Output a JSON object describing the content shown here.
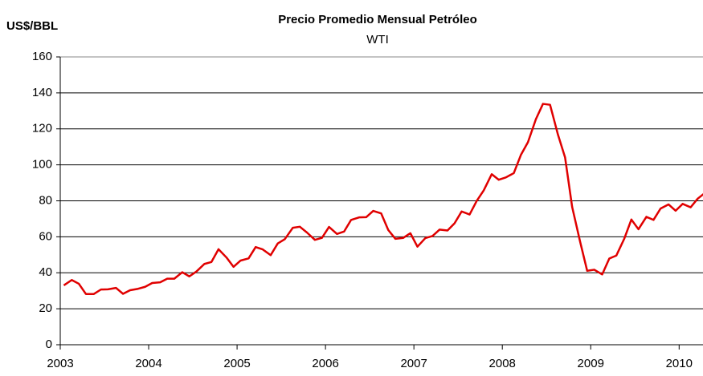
{
  "chart_data": {
    "type": "line",
    "title": "Precio Promedio Mensual Petróleo",
    "subtitle": "WTI",
    "y_label": "US$/BBL",
    "x": [
      2003.04,
      2003.13,
      2003.21,
      2003.29,
      2003.38,
      2003.46,
      2003.54,
      2003.63,
      2003.71,
      2003.79,
      2003.88,
      2003.96,
      2004.04,
      2004.13,
      2004.21,
      2004.29,
      2004.38,
      2004.46,
      2004.54,
      2004.63,
      2004.71,
      2004.79,
      2004.88,
      2004.96,
      2005.04,
      2005.13,
      2005.21,
      2005.29,
      2005.38,
      2005.46,
      2005.54,
      2005.63,
      2005.71,
      2005.79,
      2005.88,
      2005.96,
      2006.04,
      2006.13,
      2006.21,
      2006.29,
      2006.38,
      2006.46,
      2006.54,
      2006.63,
      2006.71,
      2006.79,
      2006.88,
      2006.96,
      2007.04,
      2007.13,
      2007.21,
      2007.29,
      2007.38,
      2007.46,
      2007.54,
      2007.63,
      2007.71,
      2007.79,
      2007.88,
      2007.96,
      2008.04,
      2008.13,
      2008.21,
      2008.29,
      2008.38,
      2008.46,
      2008.54,
      2008.63,
      2008.71,
      2008.79,
      2008.88,
      2008.96,
      2009.04,
      2009.13,
      2009.21,
      2009.29,
      2009.38,
      2009.46,
      2009.54,
      2009.63,
      2009.71,
      2009.79,
      2009.88,
      2009.96,
      2010.04,
      2010.13,
      2010.21,
      2010.29
    ],
    "series": [
      {
        "name": "WTI",
        "color": "#e00000",
        "values": [
          33.0,
          36.0,
          33.9,
          28.2,
          28.2,
          30.7,
          30.8,
          31.6,
          28.3,
          30.3,
          31.1,
          32.2,
          34.3,
          34.7,
          36.7,
          36.7,
          40.3,
          38.0,
          40.7,
          44.9,
          46.0,
          53.1,
          48.5,
          43.3,
          46.8,
          48.0,
          54.3,
          53.0,
          49.8,
          56.3,
          58.7,
          65.0,
          65.6,
          62.4,
          58.3,
          59.4,
          65.5,
          61.6,
          62.9,
          69.4,
          70.8,
          70.9,
          74.4,
          73.0,
          63.8,
          58.9,
          59.4,
          62.0,
          54.5,
          59.3,
          60.4,
          64.0,
          63.5,
          67.5,
          74.1,
          72.4,
          79.9,
          85.8,
          94.8,
          91.7,
          93.0,
          95.4,
          105.5,
          112.6,
          125.4,
          133.9,
          133.4,
          116.7,
          104.1,
          76.6,
          57.3,
          41.1,
          41.7,
          39.1,
          47.9,
          49.6,
          59.0,
          69.6,
          64.2,
          71.1,
          69.4,
          75.7,
          78.0,
          74.5,
          78.3,
          76.4,
          81.2,
          84.3
        ]
      }
    ],
    "xlim": [
      2003,
      2010.27
    ],
    "xticks": [
      2003,
      2004,
      2005,
      2006,
      2007,
      2008,
      2009,
      2010
    ],
    "ylim": [
      0,
      160
    ],
    "yticks": [
      0,
      20,
      40,
      60,
      80,
      100,
      120,
      140,
      160
    ],
    "grid": true
  }
}
